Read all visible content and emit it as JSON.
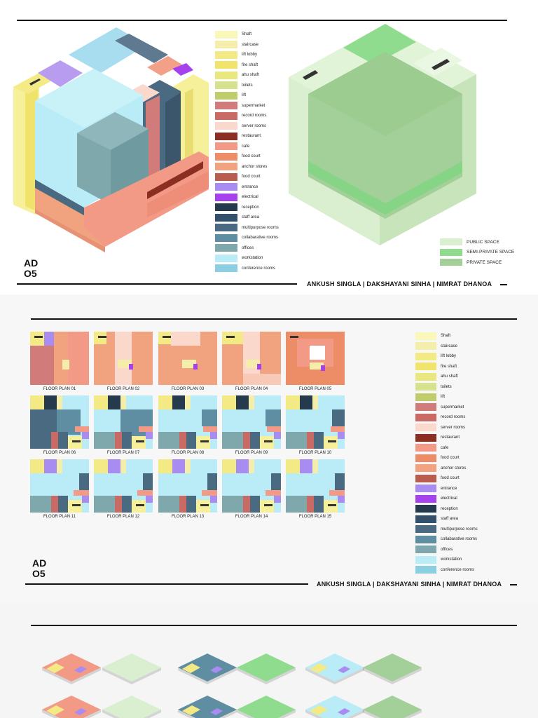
{
  "board_code": "AD\nO5",
  "authors": "ANKUSH SINGLA | DAKSHAYANI SINHA | NIMRAT DHANOA",
  "function_legend": [
    {
      "label": "Shaft",
      "color": "#fbf7b8"
    },
    {
      "label": "staircase",
      "color": "#f5eeaa"
    },
    {
      "label": "lift lobby",
      "color": "#f3ea86"
    },
    {
      "label": "fire shaft",
      "color": "#f0e46a"
    },
    {
      "label": "ahu shaft",
      "color": "#e8e87e"
    },
    {
      "label": "toilets",
      "color": "#d7e28e"
    },
    {
      "label": "lift",
      "color": "#c1cc6c"
    },
    {
      "label": "supermarket",
      "color": "#d27b7b"
    },
    {
      "label": "record rooms",
      "color": "#c96a64"
    },
    {
      "label": "server rooms",
      "color": "#fbd8cc"
    },
    {
      "label": "restaurant",
      "color": "#8c2e22"
    },
    {
      "label": "cafe",
      "color": "#f29a86"
    },
    {
      "label": "food court",
      "color": "#ec8d68"
    },
    {
      "label": "anchor stores",
      "color": "#f0a37e"
    },
    {
      "label": "food court",
      "color": "#b95e4e"
    },
    {
      "label": "entrance",
      "color": "#a98cf2"
    },
    {
      "label": "electrical",
      "color": "#a641ee"
    },
    {
      "label": "reception",
      "color": "#263a4e"
    },
    {
      "label": "staff area",
      "color": "#324f6c"
    },
    {
      "label": "multipurpose rooms",
      "color": "#4a6a82"
    },
    {
      "label": "collabarative rooms",
      "color": "#5f8ea2"
    },
    {
      "label": "offices",
      "color": "#7ea8ac"
    },
    {
      "label": "workstation",
      "color": "#b9ecf6"
    },
    {
      "label": "conference rooms",
      "color": "#8ccfe2"
    }
  ],
  "space_legend": [
    {
      "label": "PUBLIC SPACE",
      "color": "#d9efcf"
    },
    {
      "label": "SEMI-PRIVATE SPACE",
      "color": "#8fdc8f"
    },
    {
      "label": "PRIVATE SPACE",
      "color": "#a3cf98"
    }
  ],
  "floor_plans": [
    "FLOOR PLAN 01",
    "FLOOR PLAN 02",
    "FLOOR PLAN 03",
    "FLOOR PLAN 04",
    "FLOOR PLAN 05",
    "FLOOR PLAN 06",
    "FLOOR PLAN 07",
    "FLOOR PLAN 08",
    "FLOOR PLAN 09",
    "FLOOR PLAN 10",
    "FLOOR PLAN 11",
    "FLOOR PLAN 12",
    "FLOOR PLAN 13",
    "FLOOR PLAN 14",
    "FLOOR PLAN 15"
  ]
}
